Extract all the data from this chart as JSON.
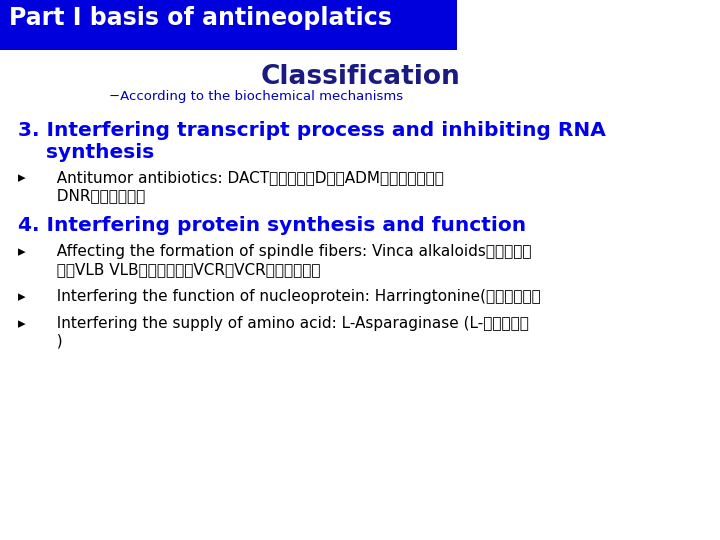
{
  "bg_color": "#ffffff",
  "header_bg": "#0000dd",
  "header_text": "Part I basis of antineoplatics",
  "header_text_color": "#ffffff",
  "header_fontsize": 17,
  "classification_text": "Classification",
  "classification_color": "#1a1a80",
  "classification_fontsize": 19,
  "subtitle_text": "−According to the biochemical mechanisms",
  "subtitle_color": "#0000bb",
  "subtitle_fontsize": 9.5,
  "section3_line1": "3. Interfering transcript process and inhibiting RNA",
  "section3_line2": "    synthesis",
  "section3_color": "#0000ee",
  "section3_fontsize": 14.5,
  "bullet_arrow": "▸",
  "bullet3_1_line1": "  Antitumor antibiotics: DACT（放线菌素D）、ADM（多柔比星）、",
  "bullet3_1_line2": "  DNR（柔红霉素）",
  "bullet_color": "#000000",
  "bullet_fontsize": 11,
  "section4_heading": "4. Interfering protein synthesis and function",
  "section4_color": "#0000ee",
  "section4_fontsize": 14.5,
  "bullet4_1_line1": "  Affecting the formation of spindle fibers: Vinca alkaloids（长春碱类",
  "bullet4_1_line2": "  ），VLB VLB（长春碱），VCR，VCR（长春新碱）",
  "bullet4_2": "  Interfering the function of nucleoprotein: Harringtonine(三尖杉酰碱）",
  "bullet4_3_line1": "  Interfering the supply of amino acid: L-Asparaginase (L-门冬酰胺酶",
  "bullet4_3_line2": "  )"
}
